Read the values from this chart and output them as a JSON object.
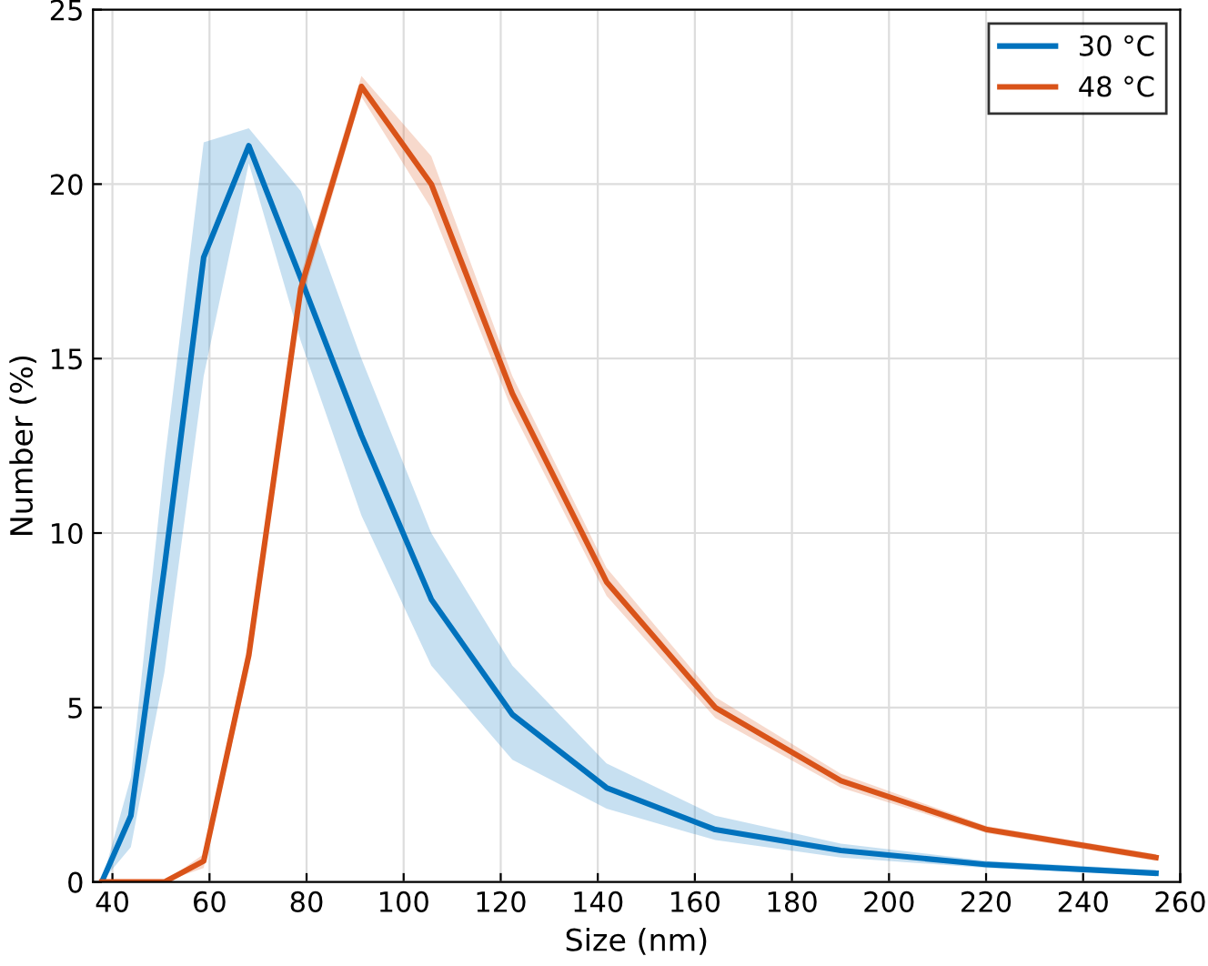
{
  "chart_data": {
    "type": "line",
    "xlabel": "Size (nm)",
    "ylabel": "Number (%)",
    "x": [
      37.8,
      43.8,
      50.7,
      58.8,
      68.1,
      78.8,
      91.3,
      105.7,
      122.4,
      141.8,
      164.2,
      190.1,
      220.2,
      255
    ],
    "series": [
      {
        "name": "30 °C",
        "color": "#0072bd",
        "values": [
          0,
          1.9,
          9,
          17.9,
          21.1,
          17.3,
          12.8,
          8.1,
          4.8,
          2.7,
          1.5,
          0.9,
          0.5,
          0.25
        ],
        "lower": [
          0,
          1,
          6,
          14.5,
          20.6,
          15.5,
          10.5,
          6.2,
          3.5,
          2.1,
          1.2,
          0.7,
          0.4,
          0.2
        ],
        "upper": [
          0,
          3,
          12,
          21.2,
          21.6,
          19.8,
          15,
          10,
          6.2,
          3.4,
          1.9,
          1.1,
          0.6,
          0.35
        ]
      },
      {
        "name": "48 °C",
        "color": "#d95319",
        "values": [
          0,
          0,
          0,
          0.6,
          6.5,
          17,
          22.8,
          20,
          14,
          8.6,
          5,
          2.9,
          1.5,
          0.7
        ],
        "lower": [
          0,
          0,
          0,
          0.4,
          6.1,
          16.6,
          22.5,
          19.3,
          13.5,
          8.2,
          4.7,
          2.7,
          1.4,
          0.6
        ],
        "upper": [
          0,
          0,
          0,
          0.8,
          6.9,
          17.4,
          23.1,
          20.8,
          14.5,
          9,
          5.3,
          3.1,
          1.6,
          0.8
        ]
      }
    ],
    "xlim": [
      36,
      260
    ],
    "xticks": [
      40,
      60,
      80,
      100,
      120,
      140,
      160,
      180,
      200,
      220,
      240,
      260
    ],
    "ylim": [
      0,
      25
    ],
    "yticks": [
      0,
      5,
      10,
      15,
      20,
      25
    ],
    "grid": true,
    "legend": "top right",
    "marker": "none",
    "line_style": "solid"
  }
}
